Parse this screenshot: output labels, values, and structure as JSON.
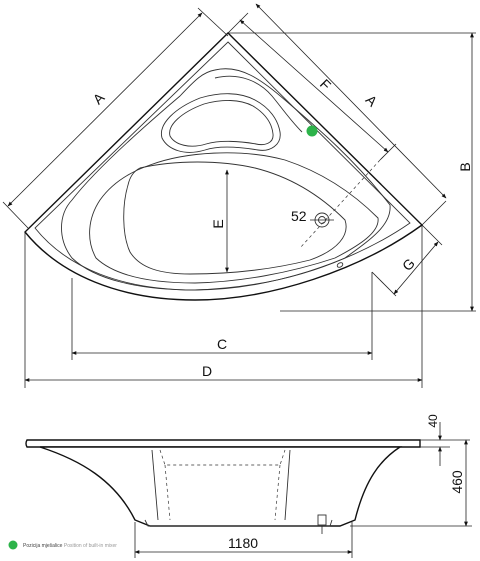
{
  "labels": {
    "A_left": "A",
    "F": "F",
    "A_right": "A",
    "B": "B",
    "E": "E",
    "diameter": "52",
    "G": "G",
    "C": "C",
    "D": "D",
    "height_rim": "40",
    "height_total": "460",
    "width_bottom": "1180"
  },
  "legend": {
    "text_primary": "Pozicija mješalice",
    "text_secondary": "Position of built-in mixer",
    "marker_color": "#2db34a"
  }
}
